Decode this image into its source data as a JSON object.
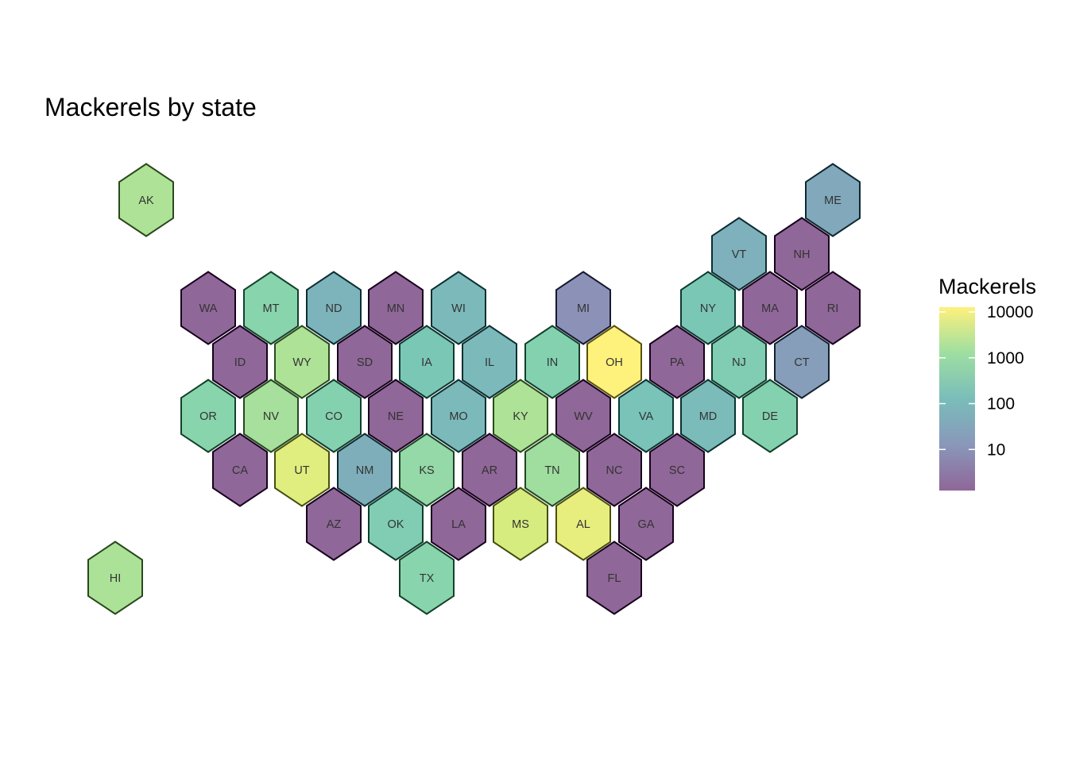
{
  "chart_data": {
    "type": "hexbin-map",
    "title": "Mackerels by state",
    "colorscale": "viridis",
    "scale": "log10",
    "legend": {
      "title": "Mackerels",
      "position": "right",
      "ticks": [
        10,
        100,
        1000,
        10000
      ],
      "tick_labels": [
        "10",
        "100",
        "1000",
        "10000"
      ],
      "range": [
        1,
        10000
      ]
    },
    "states": [
      {
        "abbr": "AK",
        "value": 1500
      },
      {
        "abbr": "HI",
        "value": 1400
      },
      {
        "abbr": "ME",
        "value": 30
      },
      {
        "abbr": "VT",
        "value": 50
      },
      {
        "abbr": "NH",
        "value": 1
      },
      {
        "abbr": "WA",
        "value": 1
      },
      {
        "abbr": "MT",
        "value": 500
      },
      {
        "abbr": "ND",
        "value": 60
      },
      {
        "abbr": "MN",
        "value": 1
      },
      {
        "abbr": "WI",
        "value": 80
      },
      {
        "abbr": "MI",
        "value": 7
      },
      {
        "abbr": "NY",
        "value": 200
      },
      {
        "abbr": "MA",
        "value": 1
      },
      {
        "abbr": "RI",
        "value": 1
      },
      {
        "abbr": "ID",
        "value": 1
      },
      {
        "abbr": "WY",
        "value": 1500
      },
      {
        "abbr": "SD",
        "value": 1
      },
      {
        "abbr": "IA",
        "value": 200
      },
      {
        "abbr": "IL",
        "value": 80
      },
      {
        "abbr": "IN",
        "value": 400
      },
      {
        "abbr": "OH",
        "value": 10000
      },
      {
        "abbr": "PA",
        "value": 1
      },
      {
        "abbr": "NJ",
        "value": 300
      },
      {
        "abbr": "CT",
        "value": 15
      },
      {
        "abbr": "OR",
        "value": 500
      },
      {
        "abbr": "NV",
        "value": 1200
      },
      {
        "abbr": "CO",
        "value": 400
      },
      {
        "abbr": "NE",
        "value": 1
      },
      {
        "abbr": "MO",
        "value": 80
      },
      {
        "abbr": "KY",
        "value": 1500
      },
      {
        "abbr": "WV",
        "value": 1
      },
      {
        "abbr": "VA",
        "value": 150
      },
      {
        "abbr": "MD",
        "value": 90
      },
      {
        "abbr": "DE",
        "value": 400
      },
      {
        "abbr": "CA",
        "value": 1
      },
      {
        "abbr": "UT",
        "value": 5000
      },
      {
        "abbr": "NM",
        "value": 40
      },
      {
        "abbr": "KS",
        "value": 700
      },
      {
        "abbr": "AR",
        "value": 1
      },
      {
        "abbr": "TN",
        "value": 1000
      },
      {
        "abbr": "NC",
        "value": 1
      },
      {
        "abbr": "SC",
        "value": 1
      },
      {
        "abbr": "AZ",
        "value": 1
      },
      {
        "abbr": "OK",
        "value": 300
      },
      {
        "abbr": "LA",
        "value": 1
      },
      {
        "abbr": "MS",
        "value": 4000
      },
      {
        "abbr": "AL",
        "value": 6000
      },
      {
        "abbr": "GA",
        "value": 1
      },
      {
        "abbr": "TX",
        "value": 500
      },
      {
        "abbr": "FL",
        "value": 1
      }
    ]
  }
}
